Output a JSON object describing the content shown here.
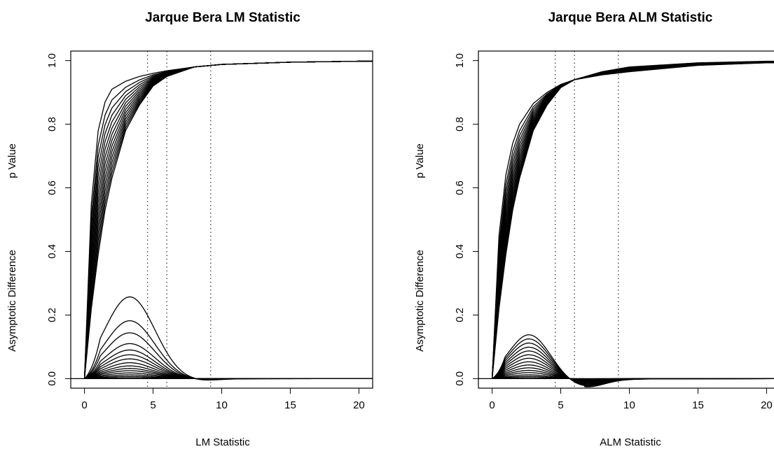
{
  "chart_data": [
    {
      "type": "line",
      "title": "Jarque Bera LM Statistic",
      "xlabel": "LM Statistic",
      "ylabel_top": "p Value",
      "ylabel_bottom": "Asymptotic Difference",
      "xlim": [
        -1,
        21
      ],
      "ylim": [
        -0.03,
        1.03
      ],
      "xticks": [
        0,
        5,
        10,
        15,
        20
      ],
      "yticks": [
        0.0,
        0.2,
        0.4,
        0.6,
        0.8,
        1.0
      ],
      "xtick_labels": [
        "0",
        "5",
        "10",
        "15",
        "20"
      ],
      "ytick_labels": [
        "0.0",
        "0.2",
        "0.4",
        "0.6",
        "0.8",
        "1.0"
      ],
      "vlines": [
        4.6,
        6.0,
        9.2
      ],
      "reference_lines": [
        0
      ],
      "num_series": 15,
      "p_value_curves": {
        "x": [
          0,
          0.5,
          1,
          1.5,
          2,
          3,
          4,
          5,
          6,
          8,
          10,
          15,
          20
        ],
        "upper_envelope": [
          0,
          0.55,
          0.78,
          0.87,
          0.91,
          0.935,
          0.95,
          0.96,
          0.968,
          0.98,
          0.988,
          0.995,
          0.998
        ],
        "lower_envelope": [
          0,
          0.22,
          0.39,
          0.53,
          0.63,
          0.78,
          0.86,
          0.92,
          0.95,
          0.98,
          0.988,
          0.995,
          0.998
        ]
      },
      "asymptotic_difference_peaks": [
        0.257,
        0.182,
        0.144,
        0.11,
        0.09,
        0.075,
        0.062,
        0.05,
        0.04,
        0.032,
        0.025,
        0.018,
        0.012,
        0.007,
        0.003
      ],
      "asymptotic_difference_peak_x": 3.3,
      "asymptotic_difference_min": -0.007,
      "asymptotic_difference_min_x": 8.0
    },
    {
      "type": "line",
      "title": "Jarque Bera ALM Statistic",
      "xlabel": "ALM Statistic",
      "ylabel_top": "p Value",
      "ylabel_bottom": "Asymptotic Difference",
      "xlim": [
        -1,
        21
      ],
      "ylim": [
        -0.03,
        1.03
      ],
      "xticks": [
        0,
        5,
        10,
        15,
        20
      ],
      "yticks": [
        0.0,
        0.2,
        0.4,
        0.6,
        0.8,
        1.0
      ],
      "xtick_labels": [
        "0",
        "5",
        "10",
        "15",
        "20"
      ],
      "ytick_labels": [
        "0.0",
        "0.2",
        "0.4",
        "0.6",
        "0.8",
        "1.0"
      ],
      "vlines": [
        4.6,
        6.0,
        9.2
      ],
      "reference_lines": [
        0
      ],
      "num_series": 15,
      "p_value_curves": {
        "x": [
          0,
          0.5,
          1,
          1.5,
          2,
          3,
          4,
          5,
          6,
          8,
          10,
          15,
          20
        ],
        "upper_envelope": [
          0,
          0.45,
          0.64,
          0.74,
          0.8,
          0.865,
          0.9,
          0.925,
          0.94,
          0.965,
          0.98,
          0.993,
          0.998
        ],
        "lower_envelope": [
          0,
          0.22,
          0.39,
          0.53,
          0.63,
          0.78,
          0.86,
          0.915,
          0.94,
          0.955,
          0.965,
          0.985,
          0.993
        ]
      },
      "asymptotic_difference_peaks": [
        0.138,
        0.125,
        0.112,
        0.099,
        0.087,
        0.075,
        0.064,
        0.053,
        0.043,
        0.034,
        0.026,
        0.019,
        0.012,
        0.007,
        0.003
      ],
      "asymptotic_difference_peak_x": 2.7,
      "asymptotic_difference_min": -0.025,
      "asymptotic_difference_min_x": 6.7
    }
  ]
}
